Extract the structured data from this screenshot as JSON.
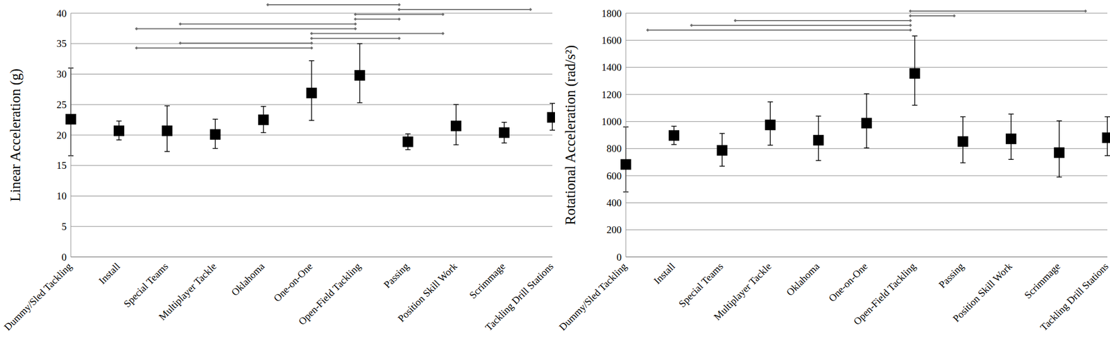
{
  "chart_data": [
    {
      "type": "scatter",
      "y_label": "Linear Acceleration (g)",
      "categories": [
        "Dummy/Sled Tackling",
        "Install",
        "Special Teams",
        "Multiplayer Tackle",
        "Oklahoma",
        "One-on-One",
        "Open-Field Tackling",
        "Passing",
        "Position Skill Work",
        "Scrimmage",
        "Tackling Drill Stations"
      ],
      "values": [
        22.6,
        20.7,
        20.7,
        20.1,
        22.5,
        26.9,
        29.8,
        18.9,
        21.5,
        20.4,
        22.9
      ],
      "lower": [
        16.6,
        19.2,
        17.3,
        17.8,
        20.4,
        22.4,
        25.3,
        17.6,
        18.4,
        18.7,
        20.8
      ],
      "upper": [
        31.0,
        22.3,
        24.8,
        22.6,
        24.7,
        32.2,
        35.0,
        20.2,
        25.0,
        22.1,
        25.2
      ],
      "significant_pairs": [
        [
          "Oklahoma",
          "Passing"
        ],
        [
          "Passing",
          "Tackling Drill Stations"
        ],
        [
          "Open-Field Tackling",
          "Position Skill Work"
        ],
        [
          "Open-Field Tackling",
          "Passing"
        ],
        [
          "Special Teams",
          "Open-Field Tackling"
        ],
        [
          "Install",
          "Open-Field Tackling"
        ],
        [
          "One-on-One",
          "Position Skill Work"
        ],
        [
          "One-on-One",
          "Passing"
        ],
        [
          "Special Teams",
          "One-on-One"
        ],
        [
          "Install",
          "One-on-One"
        ]
      ],
      "ylim": [
        0,
        40
      ],
      "yticks": [
        0,
        5,
        10,
        15,
        20,
        25,
        30,
        35,
        40
      ],
      "grid": true,
      "color": "#000000",
      "marker": "square"
    },
    {
      "type": "scatter",
      "y_label": "Rotational Acceleration (rad/s²)",
      "categories": [
        "Dummy/Sled Tackling",
        "Install",
        "Special Teams",
        "Multiplayer Tackle",
        "Oklahoma",
        "One-on-One",
        "Open-Field Tackling",
        "Passing",
        "Position Skill Work",
        "Scrimmage",
        "Tackling Drill Stations"
      ],
      "values": [
        683,
        897,
        787,
        975,
        862,
        988,
        1355,
        852,
        872,
        770,
        880
      ],
      "lower": [
        480,
        830,
        670,
        825,
        712,
        805,
        1120,
        695,
        720,
        590,
        748
      ],
      "upper": [
        960,
        965,
        912,
        1145,
        1040,
        1205,
        1632,
        1035,
        1055,
        1005,
        1035
      ],
      "significant_pairs": [
        [
          "Open-Field Tackling",
          "Tackling Drill Stations"
        ],
        [
          "Open-Field Tackling",
          "Passing"
        ],
        [
          "Special Teams",
          "Open-Field Tackling"
        ],
        [
          "Install",
          "Open-Field Tackling"
        ],
        [
          "Dummy/Sled Tackling",
          "Open-Field Tackling"
        ]
      ],
      "ylim": [
        0,
        1800
      ],
      "yticks": [
        0,
        200,
        400,
        600,
        800,
        1000,
        1200,
        1400,
        1600,
        1800
      ],
      "grid": true,
      "color": "#000000",
      "marker": "square"
    }
  ]
}
